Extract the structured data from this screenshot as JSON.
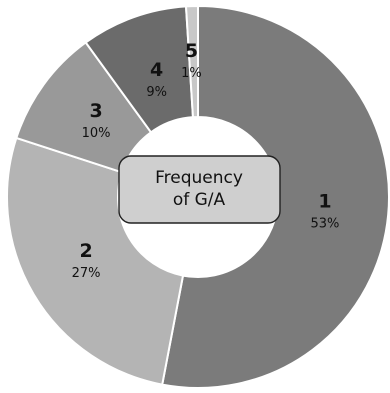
{
  "chart_data": {
    "type": "pie",
    "style": "donut",
    "center_label_lines": [
      "Frequency",
      "of G/A"
    ],
    "slices": [
      {
        "label": "1",
        "percent_label": "53%",
        "value": 53,
        "color": "#7b7b7b"
      },
      {
        "label": "2",
        "percent_label": "27%",
        "value": 27,
        "color": "#b4b4b4"
      },
      {
        "label": "3",
        "percent_label": "10%",
        "value": 10,
        "color": "#999999"
      },
      {
        "label": "4",
        "percent_label": "9%",
        "value": 9,
        "color": "#6b6b6b"
      },
      {
        "label": "5",
        "percent_label": "1%",
        "value": 1,
        "color": "#c8c8c8"
      }
    ],
    "center_box_fill": "#cfcfcf"
  }
}
